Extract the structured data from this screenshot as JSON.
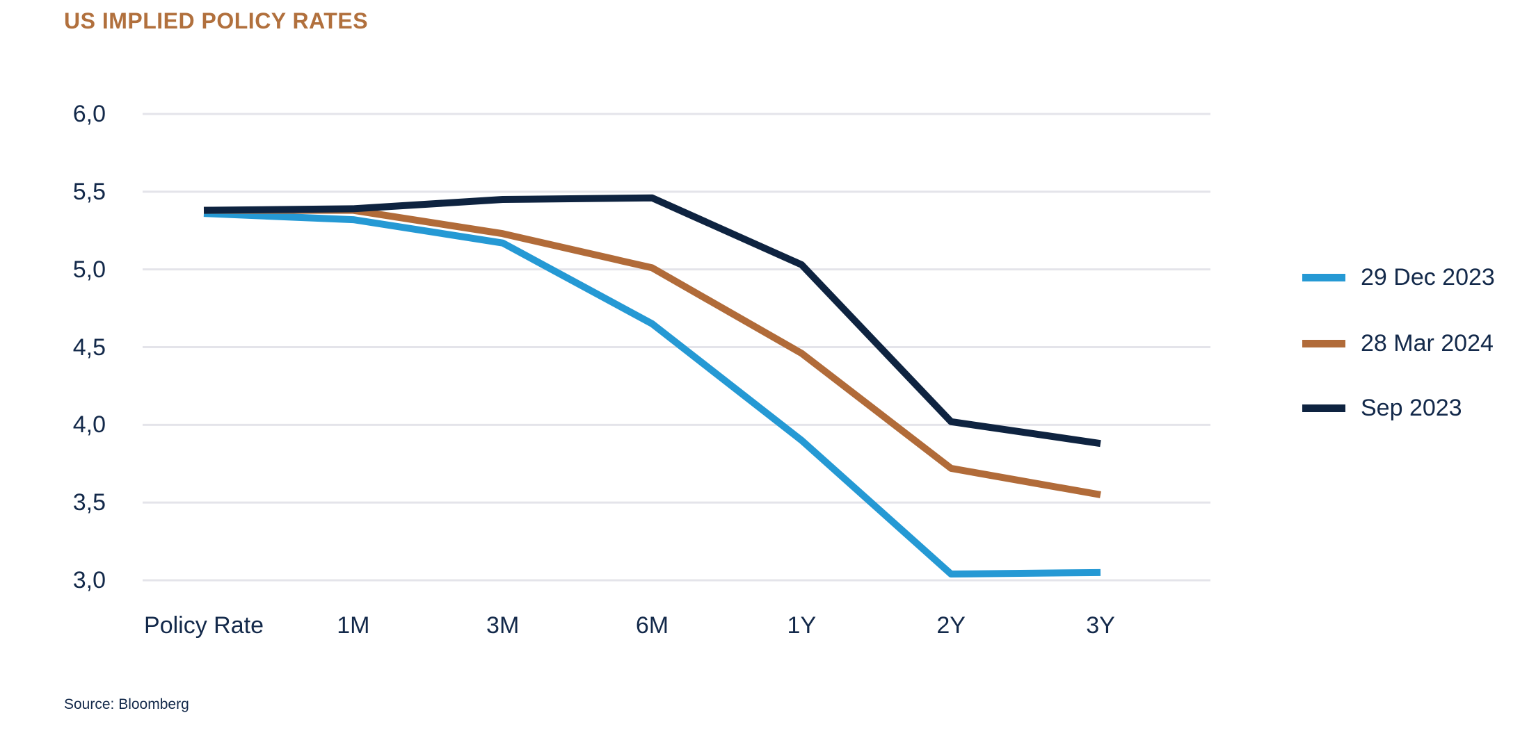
{
  "title": "US IMPLIED POLICY RATES",
  "source": "Source: Bloomberg",
  "colors": {
    "background": "#FFFFFF",
    "title": "#B1703D",
    "text": "#13294A",
    "gridline": "#E4E4EA"
  },
  "chart_data": {
    "type": "line",
    "title": "US IMPLIED POLICY RATES",
    "categories": [
      "Policy Rate",
      "1M",
      "3M",
      "6M",
      "1Y",
      "2Y",
      "3Y"
    ],
    "series": [
      {
        "name": "29 Dec 2023",
        "color": "#2599D4",
        "values": [
          5.36,
          5.32,
          5.17,
          4.65,
          3.9,
          3.04,
          3.05
        ]
      },
      {
        "name": "28 Mar 2024",
        "color": "#B16B39",
        "values": [
          5.38,
          5.38,
          5.23,
          5.01,
          4.46,
          3.72,
          3.55
        ]
      },
      {
        "name": "Sep 2023",
        "color": "#0E2340",
        "values": [
          5.38,
          5.39,
          5.45,
          5.46,
          5.03,
          4.02,
          3.88
        ]
      }
    ],
    "ylim": [
      3.0,
      6.0
    ],
    "ytick_step": 0.5,
    "ytick_labels": [
      "6,0",
      "5,5",
      "5,0",
      "4,5",
      "4,0",
      "3,5",
      "3,0"
    ],
    "xlabel": "",
    "ylabel": "",
    "grid": "horizontal",
    "legend_position": "right",
    "decimal_separator": ","
  }
}
